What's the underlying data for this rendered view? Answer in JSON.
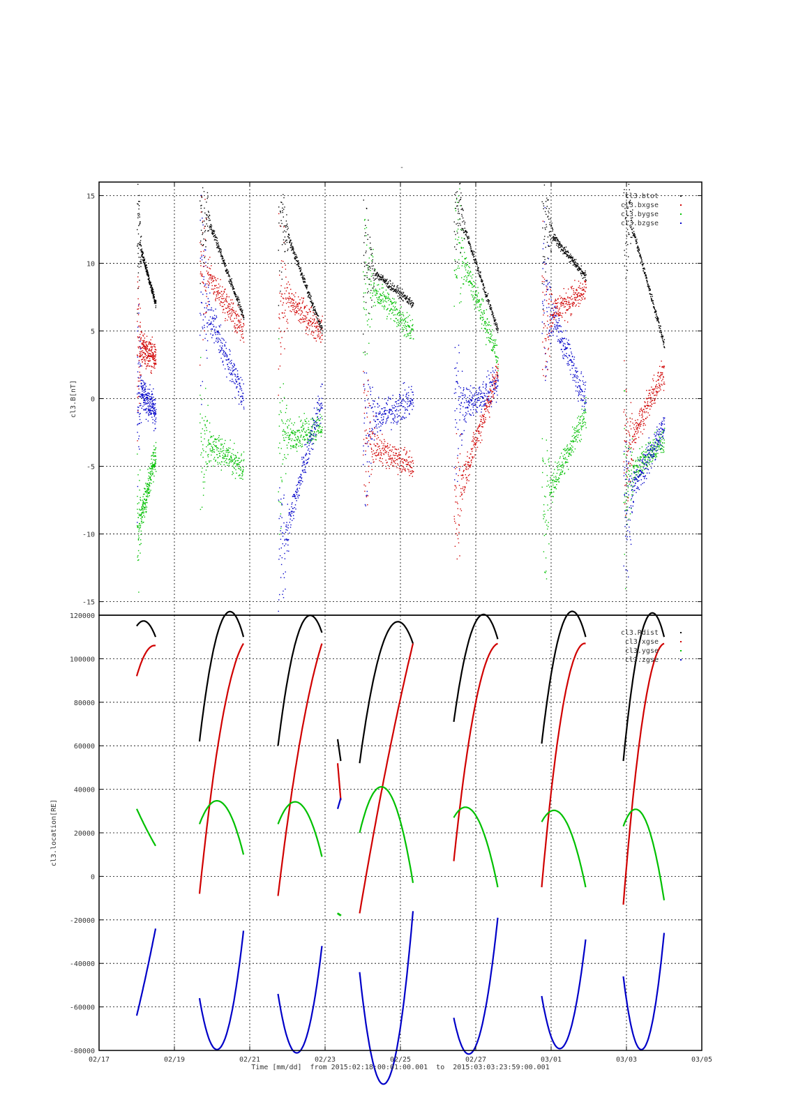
{
  "page_title": "-",
  "time_caption": "Time [mm/dd]  from 2015:02:18:00:01:00.001  to  2015:03:03:23:59:00.001",
  "x_axis": {
    "ticks": [
      "02/17",
      "02/19",
      "02/21",
      "02/23",
      "02/25",
      "02/27",
      "03/01",
      "03/03",
      "03/05"
    ],
    "range_days": [
      "2015-02-17",
      "2015-03-05"
    ],
    "grid": true
  },
  "colors": {
    "black": "#000000",
    "red": "#d00000",
    "green": "#00c000",
    "blue": "#0000c8"
  },
  "chart_data": [
    {
      "type": "scatter",
      "title": "",
      "ylabel": "cl3.B[nT]",
      "ylim": [
        -16,
        16
      ],
      "yticks": [
        "15",
        "10",
        "5",
        "0",
        "-5",
        "-10",
        "-15"
      ],
      "ytick_values": [
        15,
        10,
        5,
        0,
        -5,
        -10,
        -15
      ],
      "grid": true,
      "legend_position": "top-right",
      "series": [
        {
          "name": "cl3.btot",
          "color": "#000000"
        },
        {
          "name": "cl3.bxgse",
          "color": "#d00000"
        },
        {
          "name": "cl3.bygse",
          "color": "#00c000"
        },
        {
          "name": "cl3.bzgse",
          "color": "#0000c8"
        }
      ],
      "segments": [
        {
          "start": "2015-02-18 00:00",
          "end": "2015-02-18 12:00",
          "btot": [
            12,
            7
          ],
          "bx": [
            4,
            3
          ],
          "by": [
            -10,
            -4
          ],
          "bz": [
            1,
            -1
          ]
        },
        {
          "start": "2015-02-19 16:00",
          "end": "2015-02-20 20:00",
          "btot": [
            15,
            6
          ],
          "bx": [
            10,
            5
          ],
          "by": [
            -3,
            -5
          ],
          "bz": [
            8,
            0
          ]
        },
        {
          "start": "2015-02-21 18:00",
          "end": "2015-02-22 22:00",
          "btot": [
            14,
            5
          ],
          "bx": [
            8,
            5
          ],
          "by": [
            -3,
            -2
          ],
          "bz": [
            -12,
            0
          ]
        },
        {
          "start": "2015-02-24 00:00",
          "end": "2015-02-25 08:00",
          "btot": [
            10,
            7
          ],
          "bx": [
            -3,
            -5
          ],
          "by": [
            9,
            5
          ],
          "bz": [
            -2,
            0
          ]
        },
        {
          "start": "2015-02-26 10:00",
          "end": "2015-02-27 14:00",
          "btot": [
            15,
            5
          ],
          "bx": [
            -8,
            2
          ],
          "by": [
            12,
            3
          ],
          "bz": [
            -1,
            1
          ]
        },
        {
          "start": "2015-02-28 18:00",
          "end": "2015-03-01 22:00",
          "btot": [
            13,
            9
          ],
          "bx": [
            6,
            8
          ],
          "by": [
            -8,
            -1
          ],
          "bz": [
            8,
            0
          ]
        },
        {
          "start": "2015-03-02 22:00",
          "end": "2015-03-03 23:59",
          "btot": [
            15,
            4
          ],
          "bx": [
            -4,
            2
          ],
          "by": [
            -6,
            -3
          ],
          "bz": [
            -8,
            -2
          ]
        }
      ]
    },
    {
      "type": "line",
      "title": "",
      "ylabel": "cl3.location[RE]",
      "ylim": [
        -80000,
        120000
      ],
      "yticks": [
        "120000",
        "100000",
        "80000",
        "60000",
        "40000",
        "20000",
        "0",
        "-20000",
        "-40000",
        "-60000",
        "-80000"
      ],
      "ytick_values": [
        120000,
        100000,
        80000,
        60000,
        40000,
        20000,
        0,
        -20000,
        -40000,
        -60000,
        -80000
      ],
      "grid": true,
      "legend_position": "top-right",
      "series": [
        {
          "name": "cl3.Rdist",
          "color": "#000000"
        },
        {
          "name": "cl3.xgse",
          "color": "#d00000"
        },
        {
          "name": "cl3.ygse",
          "color": "#00c000"
        },
        {
          "name": "cl3.zgse",
          "color": "#0000c8"
        }
      ],
      "segments": [
        {
          "x": [
            "2015-02-18 00:00",
            "2015-02-18 06:00",
            "2015-02-18 12:00"
          ],
          "rdist": [
            115000,
            117000,
            110000
          ],
          "xgse": [
            92000,
            103000,
            106000
          ],
          "ygse": [
            31000,
            22000,
            14000
          ],
          "zgse": [
            -64000,
            -45000,
            -24000
          ]
        },
        {
          "x": [
            "2015-02-19 16:00",
            "2015-02-20 06:00",
            "2015-02-20 20:00"
          ],
          "rdist": [
            62000,
            117000,
            110000
          ],
          "xgse": [
            -8000,
            70000,
            107000
          ],
          "ygse": [
            24000,
            34000,
            10000
          ],
          "zgse": [
            -56000,
            -78000,
            -25000
          ]
        },
        {
          "x": [
            "2015-02-21 18:00",
            "2015-02-22 10:00",
            "2015-02-22 22:00"
          ],
          "rdist": [
            60000,
            117000,
            112000
          ],
          "xgse": [
            -9000,
            70000,
            107000
          ],
          "ygse": [
            24000,
            32000,
            9000
          ],
          "zgse": [
            -54000,
            -78000,
            -32000
          ]
        },
        {
          "x": [
            "2015-02-23 08:00",
            "2015-02-23 10:00"
          ],
          "rdist": [
            63000,
            53000
          ],
          "xgse": [
            52000,
            35000
          ],
          "ygse": [
            -17000,
            -18000
          ],
          "zgse": [
            31000,
            36000
          ]
        },
        {
          "x": [
            "2015-02-23 22:00",
            "2015-02-24 22:00",
            "2015-02-25 08:00"
          ],
          "rdist": [
            52000,
            117000,
            107000
          ],
          "xgse": [
            -17000,
            75000,
            107000
          ],
          "ygse": [
            20000,
            30000,
            -3000
          ],
          "zgse": [
            -44000,
            -78000,
            -16000
          ]
        },
        {
          "x": [
            "2015-02-26 10:00",
            "2015-02-27 00:00",
            "2015-02-27 14:00"
          ],
          "rdist": [
            71000,
            117000,
            109000
          ],
          "xgse": [
            7000,
            80000,
            107000
          ],
          "ygse": [
            27000,
            28000,
            -5000
          ],
          "zgse": [
            -65000,
            -78000,
            -19000
          ]
        },
        {
          "x": [
            "2015-02-28 18:00",
            "2015-03-01 08:00",
            "2015-03-01 22:00"
          ],
          "rdist": [
            61000,
            117000,
            110000
          ],
          "xgse": [
            -5000,
            80000,
            107000
          ],
          "ygse": [
            25000,
            27000,
            -5000
          ],
          "zgse": [
            -55000,
            -78000,
            -29000
          ]
        },
        {
          "x": [
            "2015-03-02 22:00",
            "2015-03-03 12:00",
            "2015-03-03 23:59"
          ],
          "rdist": [
            53000,
            117000,
            110000
          ],
          "xgse": [
            -13000,
            80000,
            107000
          ],
          "ygse": [
            23000,
            26000,
            -11000
          ],
          "zgse": [
            -46000,
            -78000,
            -26000
          ]
        }
      ]
    }
  ]
}
